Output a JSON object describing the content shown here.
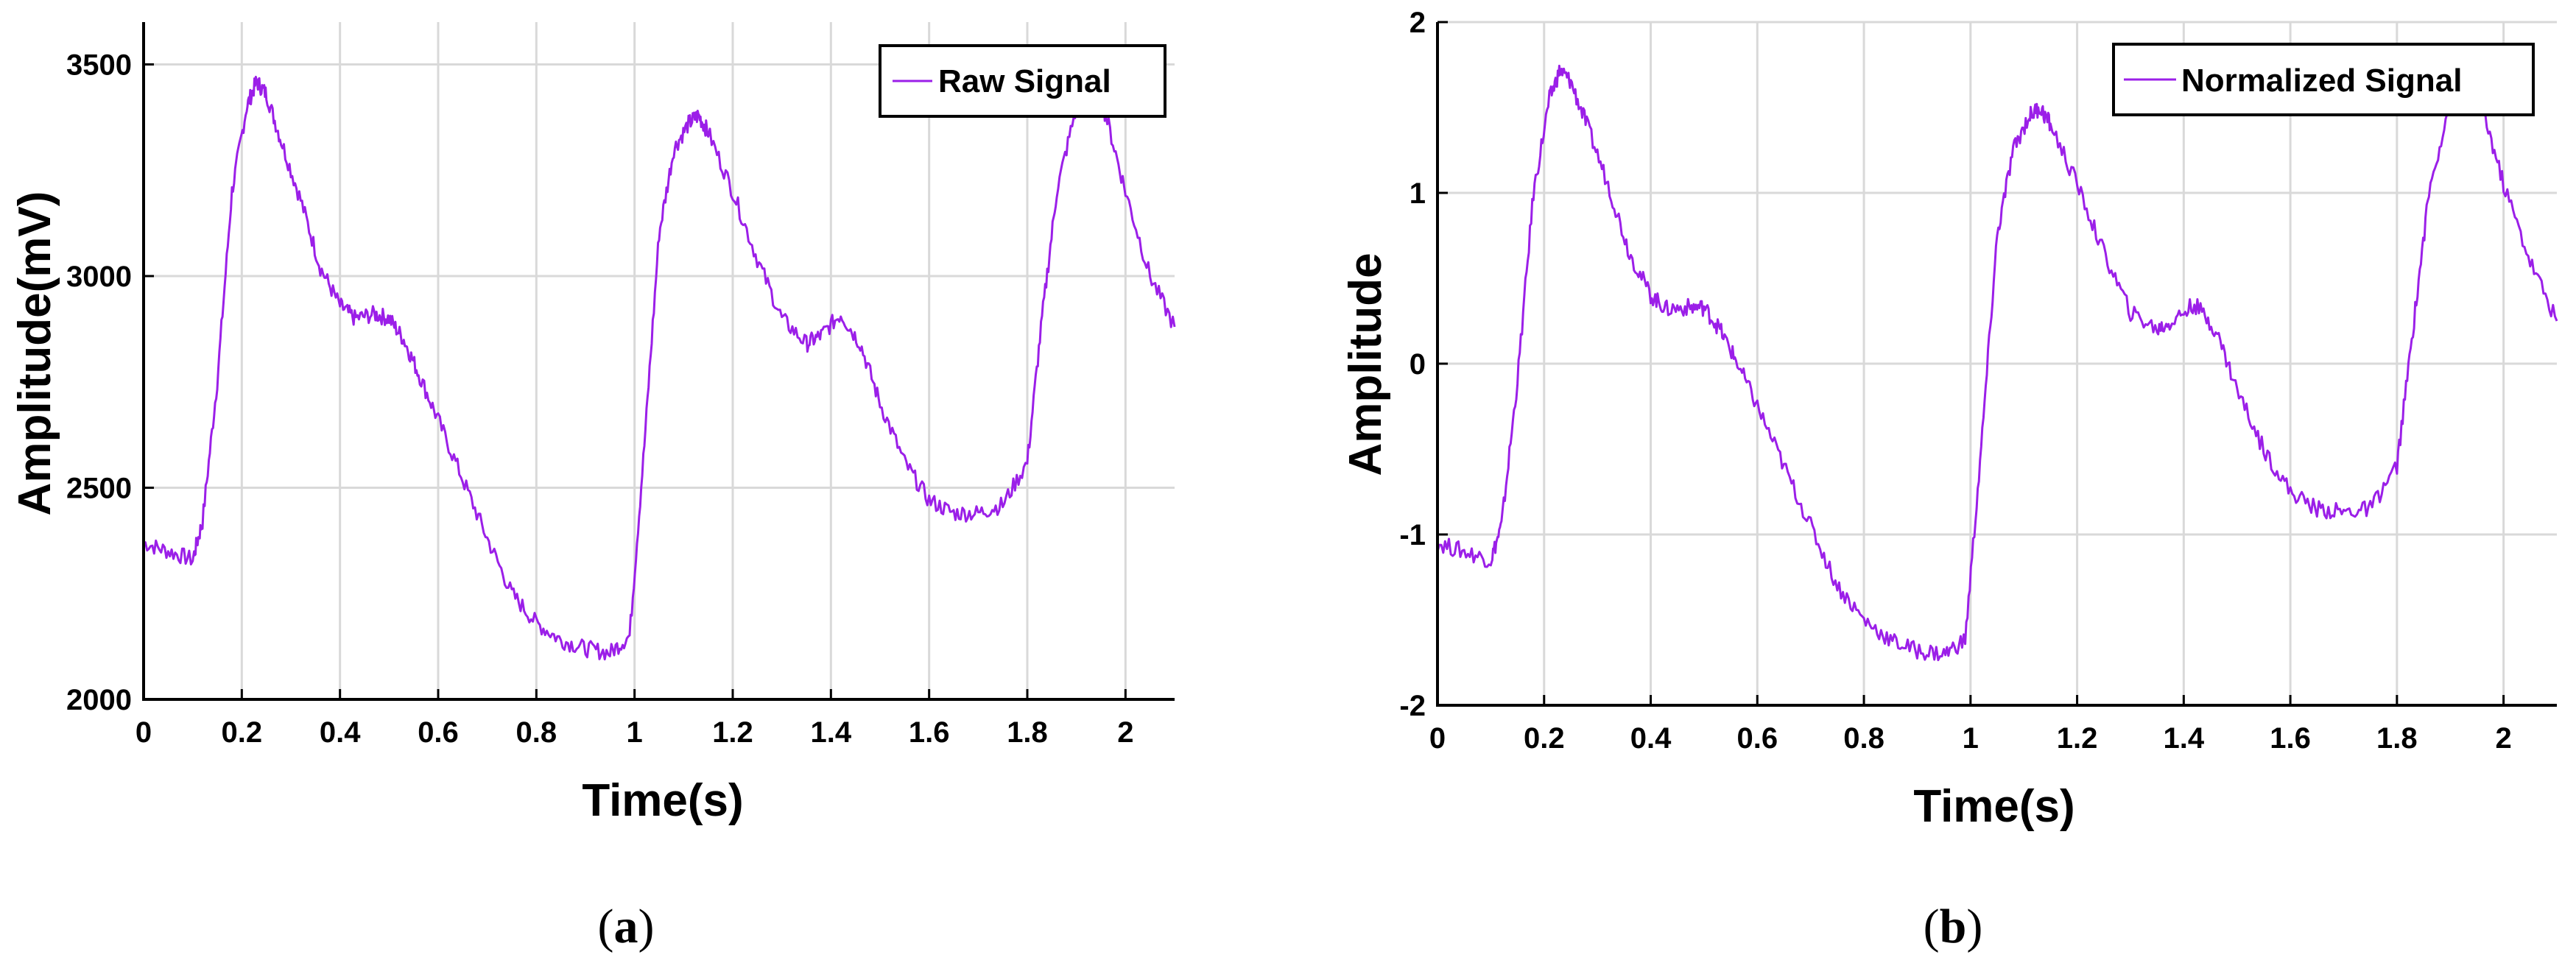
{
  "colors": {
    "signal": "#9b1fe8",
    "grid": "#d9d9d9",
    "axis": "#000000"
  },
  "chart_data": [
    {
      "type": "line",
      "caption": "a",
      "xlabel": "Time(s)",
      "ylabel": "Amplitude(mV)",
      "xlim": [
        0,
        2.1
      ],
      "ylim": [
        2000,
        3600
      ],
      "xticks": [
        0,
        0.2,
        0.4,
        0.6,
        0.8,
        1,
        1.2,
        1.4,
        1.6,
        1.8,
        2
      ],
      "xtick_labels": [
        "0",
        "0.2",
        "0.4",
        "0.6",
        "0.8",
        "1",
        "1.2",
        "1.4",
        "1.6",
        "1.8",
        "2"
      ],
      "yticks": [
        2000,
        2500,
        3000,
        3500
      ],
      "ytick_labels": [
        "2000",
        "2500",
        "3000",
        "3500"
      ],
      "grid": true,
      "legend_position": "top-right",
      "series": [
        {
          "name": "Raw Signal",
          "x": [
            0,
            0.05,
            0.1,
            0.12,
            0.15,
            0.18,
            0.21,
            0.23,
            0.25,
            0.28,
            0.32,
            0.36,
            0.4,
            0.43,
            0.47,
            0.5,
            0.53,
            0.56,
            0.6,
            0.65,
            0.7,
            0.75,
            0.8,
            0.85,
            0.9,
            0.95,
            0.99,
            1.02,
            1.05,
            1.08,
            1.11,
            1.13,
            1.15,
            1.2,
            1.25,
            1.3,
            1.35,
            1.38,
            1.42,
            1.46,
            1.5,
            1.55,
            1.6,
            1.65,
            1.7,
            1.75,
            1.8,
            1.83,
            1.86,
            1.9,
            1.93,
            1.96,
            2.0,
            2.05,
            2.1
          ],
          "y": [
            2370,
            2350,
            2330,
            2420,
            2750,
            3200,
            3400,
            3460,
            3430,
            3320,
            3180,
            3020,
            2930,
            2900,
            2910,
            2900,
            2850,
            2770,
            2660,
            2520,
            2380,
            2250,
            2180,
            2140,
            2120,
            2110,
            2150,
            2600,
            3100,
            3300,
            3360,
            3380,
            3340,
            3200,
            3040,
            2900,
            2840,
            2860,
            2910,
            2840,
            2700,
            2560,
            2470,
            2440,
            2440,
            2460,
            2560,
            2900,
            3200,
            3400,
            3460,
            3380,
            3200,
            3000,
            2880
          ]
        }
      ]
    },
    {
      "type": "line",
      "caption": "b",
      "xlabel": "Time(s)",
      "ylabel": "Amplitude",
      "xlim": [
        0,
        2.1
      ],
      "ylim": [
        -2,
        2
      ],
      "xticks": [
        0,
        0.2,
        0.4,
        0.6,
        0.8,
        1,
        1.2,
        1.4,
        1.6,
        1.8,
        2
      ],
      "xtick_labels": [
        "0",
        "0.2",
        "0.4",
        "0.6",
        "0.8",
        "1",
        "1.2",
        "1.4",
        "1.6",
        "1.8",
        "2"
      ],
      "yticks": [
        -2,
        -1,
        0,
        1,
        2
      ],
      "ytick_labels": [
        "-2",
        "-1",
        "0",
        "1",
        "2"
      ],
      "grid": true,
      "legend_position": "top-right",
      "series": [
        {
          "name": "Normalized Signal",
          "x": [
            0,
            0.05,
            0.1,
            0.12,
            0.15,
            0.18,
            0.21,
            0.23,
            0.25,
            0.28,
            0.32,
            0.36,
            0.4,
            0.43,
            0.47,
            0.5,
            0.53,
            0.56,
            0.6,
            0.65,
            0.7,
            0.75,
            0.8,
            0.85,
            0.9,
            0.95,
            0.99,
            1.02,
            1.05,
            1.08,
            1.11,
            1.13,
            1.15,
            1.2,
            1.25,
            1.3,
            1.35,
            1.38,
            1.42,
            1.46,
            1.5,
            1.55,
            1.6,
            1.65,
            1.7,
            1.75,
            1.8,
            1.83,
            1.86,
            1.9,
            1.93,
            1.96,
            2.0,
            2.05,
            2.1
          ],
          "y": [
            -1.05,
            -1.1,
            -1.15,
            -0.95,
            -0.1,
            1.0,
            1.55,
            1.72,
            1.65,
            1.4,
            1.05,
            0.65,
            0.4,
            0.32,
            0.33,
            0.33,
            0.2,
            0.02,
            -0.25,
            -0.6,
            -0.95,
            -1.3,
            -1.5,
            -1.62,
            -1.68,
            -1.7,
            -1.62,
            -0.5,
            0.75,
            1.25,
            1.45,
            1.5,
            1.4,
            1.05,
            0.65,
            0.3,
            0.2,
            0.25,
            0.35,
            0.2,
            -0.15,
            -0.5,
            -0.75,
            -0.85,
            -0.87,
            -0.85,
            -0.6,
            0.2,
            1.0,
            1.55,
            1.72,
            1.5,
            1.05,
            0.6,
            0.25
          ]
        }
      ]
    }
  ]
}
